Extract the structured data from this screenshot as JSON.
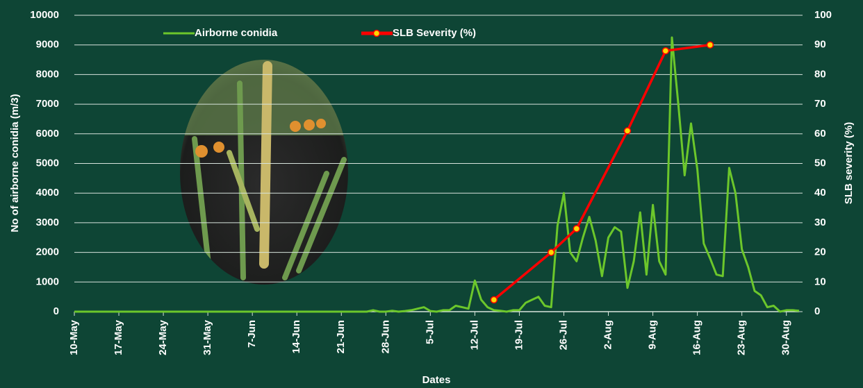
{
  "chart_data": {
    "type": "line",
    "ylabel": "No of airborne conidia (m/3)",
    "y2label": "SLB severity (%)",
    "xlabel": "Dates",
    "categories": [
      "10-May",
      null,
      null,
      null,
      null,
      null,
      null,
      "17-May",
      null,
      null,
      null,
      null,
      null,
      null,
      "24-May",
      null,
      null,
      null,
      null,
      null,
      null,
      "31-May",
      null,
      null,
      null,
      null,
      null,
      null,
      "7-Jun",
      null,
      null,
      null,
      null,
      null,
      null,
      "14-Jun",
      null,
      null,
      null,
      null,
      null,
      null,
      "21-Jun",
      null,
      null,
      null,
      null,
      null,
      null,
      "28-Jun",
      null,
      null,
      null,
      null,
      null,
      null,
      "5-Jul",
      null,
      null,
      null,
      null,
      null,
      null,
      "12-Jul",
      null,
      null,
      null,
      null,
      null,
      null,
      "19-Jul",
      null,
      null,
      null,
      null,
      null,
      null,
      "26-Jul",
      null,
      null,
      null,
      null,
      null,
      null,
      "2-Aug",
      null,
      null,
      null,
      null,
      null,
      null,
      "9-Aug",
      null,
      null,
      null,
      null,
      null,
      null,
      "16-Aug",
      null,
      null,
      null,
      null,
      null,
      null,
      "23-Aug",
      null,
      null,
      null,
      null,
      null,
      null,
      "30-Aug",
      null,
      null
    ],
    "series": [
      {
        "name": "Airborne conidia",
        "color": "#6cc72b",
        "values": [
          0,
          0,
          0,
          0,
          0,
          0,
          0,
          0,
          0,
          0,
          0,
          0,
          0,
          0,
          0,
          0,
          0,
          0,
          0,
          0,
          0,
          0,
          0,
          0,
          0,
          0,
          0,
          0,
          0,
          0,
          0,
          0,
          0,
          0,
          0,
          0,
          0,
          0,
          0,
          0,
          0,
          0,
          0,
          0,
          0,
          0,
          0,
          50,
          0,
          0,
          30,
          0,
          20,
          50,
          100,
          150,
          20,
          0,
          50,
          50,
          200,
          150,
          100,
          1050,
          400,
          150,
          50,
          30,
          0,
          50,
          50,
          300,
          400,
          500,
          200,
          150,
          2900,
          4000,
          2000,
          1700,
          2500,
          3200,
          2400,
          1200,
          2500,
          2850,
          2700,
          800,
          1700,
          3350,
          1250,
          3600,
          1700,
          1250,
          9250,
          7000,
          4600,
          6350,
          4800,
          2300,
          1800,
          1250,
          1200,
          4850,
          4000,
          2100,
          1500,
          700,
          550,
          150,
          200,
          0,
          50,
          50,
          30
        ]
      },
      {
        "name": "SLB Severity (%)",
        "color": "#ff0000",
        "axis": "y2",
        "marker_color": "#ffd700",
        "values": [
          null,
          null,
          null,
          null,
          null,
          null,
          null,
          null,
          null,
          null,
          null,
          null,
          null,
          null,
          null,
          null,
          null,
          null,
          null,
          null,
          null,
          null,
          null,
          null,
          null,
          null,
          null,
          null,
          null,
          null,
          null,
          null,
          null,
          null,
          null,
          null,
          null,
          null,
          null,
          null,
          null,
          null,
          null,
          null,
          null,
          null,
          null,
          null,
          null,
          null,
          null,
          null,
          null,
          null,
          null,
          null,
          null,
          null,
          null,
          null,
          null,
          null,
          null,
          null,
          null,
          null,
          4,
          null,
          null,
          null,
          null,
          null,
          null,
          null,
          null,
          20,
          null,
          null,
          null,
          28,
          null,
          null,
          null,
          null,
          null,
          null,
          null,
          61,
          null,
          null,
          null,
          null,
          null,
          88,
          null,
          null,
          null,
          null,
          null,
          null,
          90,
          null,
          null,
          null,
          null,
          null,
          null,
          null,
          null,
          null,
          null,
          null,
          null,
          null,
          null
        ]
      }
    ],
    "connect_nulls": true,
    "ylim": [
      0,
      10000
    ],
    "yticks": [
      0,
      1000,
      2000,
      3000,
      4000,
      5000,
      6000,
      7000,
      8000,
      9000,
      10000
    ],
    "y2lim": [
      0,
      100
    ],
    "y2ticks": [
      0,
      10,
      20,
      30,
      40,
      50,
      60,
      70,
      80,
      90,
      100
    ],
    "grid": true,
    "legend": "top"
  }
}
